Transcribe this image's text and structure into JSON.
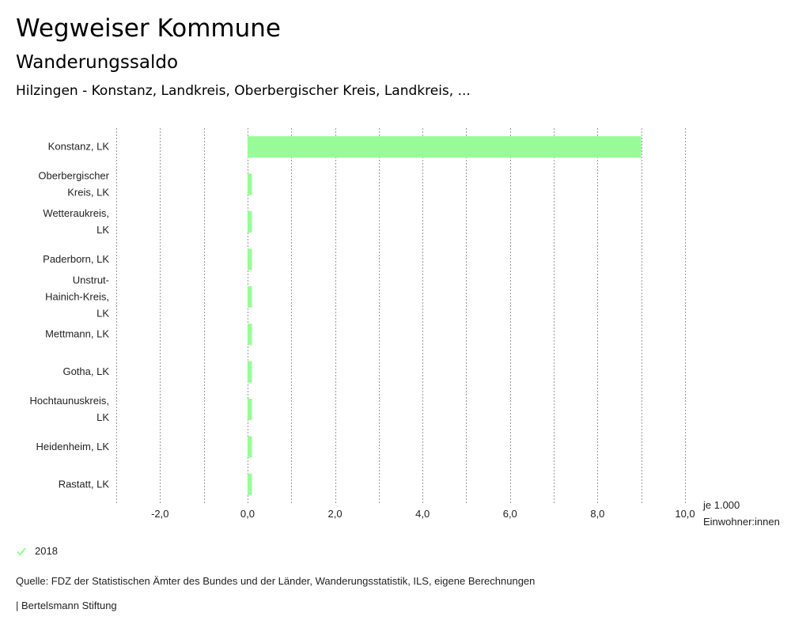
{
  "header": {
    "title": "Wegweiser Kommune",
    "subtitle": "Wanderungssaldo",
    "region": "Hilzingen - Konstanz, Landkreis, Oberbergischer Kreis, Landkreis, ..."
  },
  "colors": {
    "bar": "#98fb98",
    "grid": "#9a9a9a",
    "text": "#222222"
  },
  "chart_data": {
    "type": "bar",
    "orientation": "horizontal",
    "categories": [
      [
        "Konstanz, LK"
      ],
      [
        "Oberbergischer",
        "Kreis, LK"
      ],
      [
        "Wetteraukreis,",
        "LK"
      ],
      [
        "Paderborn, LK"
      ],
      [
        "Unstrut-",
        "Hainich-Kreis,",
        "LK"
      ],
      [
        "Mettmann, LK"
      ],
      [
        "Gotha, LK"
      ],
      [
        "Hochtaunuskreis,",
        "LK"
      ],
      [
        "Heidenheim, LK"
      ],
      [
        "Rastatt, LK"
      ]
    ],
    "series": [
      {
        "name": "2018",
        "values": [
          9.0,
          0.1,
          0.1,
          0.1,
          0.1,
          0.1,
          0.1,
          0.1,
          0.1,
          0.1
        ]
      }
    ],
    "xlim": [
      -3.0,
      10.0
    ],
    "xticks": [
      -2.0,
      0.0,
      2.0,
      4.0,
      6.0,
      8.0,
      10.0
    ],
    "xtick_labels": [
      "-2,0",
      "0,0",
      "2,0",
      "4,0",
      "6,0",
      "8,0",
      "10,0"
    ],
    "grid_step": 1.0,
    "xlabel": [
      "je 1.000",
      "Einwohner:innen"
    ],
    "legend_position": "bottom-left"
  },
  "legend": {
    "label": "2018"
  },
  "footer": {
    "source": "Quelle: FDZ der Statistischen Ämter des Bundes und der Länder, Wanderungsstatistik, ILS, eigene Berechnungen",
    "credit": "| Bertelsmann Stiftung"
  }
}
